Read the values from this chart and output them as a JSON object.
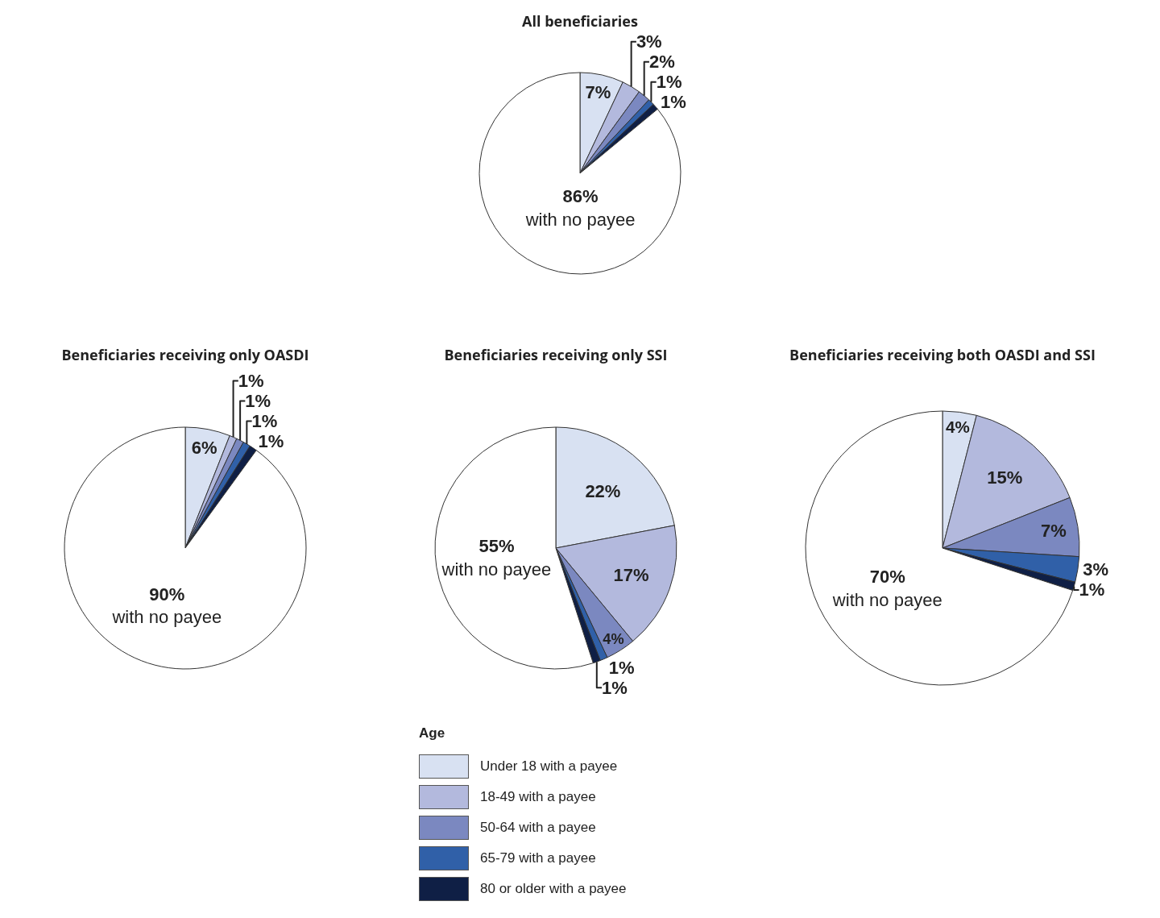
{
  "chart_data": [
    {
      "type": "pie",
      "title": "All beneficiaries",
      "categories": [
        null,
        null,
        null,
        null,
        null,
        "with no payee"
      ],
      "values": [
        7,
        3,
        2,
        1,
        1,
        86
      ],
      "value_labels": [
        "7%",
        "3%",
        "2%",
        "1%",
        "1%",
        "86%"
      ],
      "colors": [
        "#d8e1f2",
        "#b3b9dd",
        "#7b88c0",
        "#3060a8",
        "#0f1f45",
        "#ffffff"
      ],
      "legend": false
    },
    {
      "type": "pie",
      "title": "Beneficiaries receiving only OASDI",
      "categories": [
        null,
        null,
        null,
        null,
        null,
        "with no payee"
      ],
      "values": [
        6,
        1,
        1,
        1,
        1,
        90
      ],
      "value_labels": [
        "6%",
        "1%",
        "1%",
        "1%",
        "1%",
        "90%"
      ],
      "colors": [
        "#d8e1f2",
        "#b3b9dd",
        "#7b88c0",
        "#3060a8",
        "#0f1f45",
        "#ffffff"
      ],
      "legend": false
    },
    {
      "type": "pie",
      "title": "Beneficiaries receiving only SSI",
      "categories": [
        "Under 18 with a payee",
        "18-49 with a payee",
        "50-64 with a payee",
        "65-79 with a payee",
        "80 or older with a payee",
        "with no payee"
      ],
      "values": [
        22,
        17,
        4,
        1,
        1,
        55
      ],
      "value_labels": [
        "22%",
        "17%",
        "4%",
        "1%",
        "1%",
        "55%"
      ],
      "colors": [
        "#d8e1f2",
        "#b3b9dd",
        "#7b88c0",
        "#3060a8",
        "#0f1f45",
        "#ffffff"
      ],
      "legend": "bottom",
      "legend_title": "Age"
    },
    {
      "type": "pie",
      "title": "Beneficiaries receiving both OASDI and SSI",
      "categories": [
        null,
        null,
        null,
        null,
        null,
        "with no payee"
      ],
      "values": [
        4,
        15,
        7,
        3,
        1,
        70
      ],
      "value_labels": [
        "4%",
        "15%",
        "7%",
        "3%",
        "1%",
        "70%"
      ],
      "colors": [
        "#d8e1f2",
        "#b3b9dd",
        "#7b88c0",
        "#3060a8",
        "#0f1f45",
        "#ffffff"
      ],
      "legend": false
    }
  ]
}
